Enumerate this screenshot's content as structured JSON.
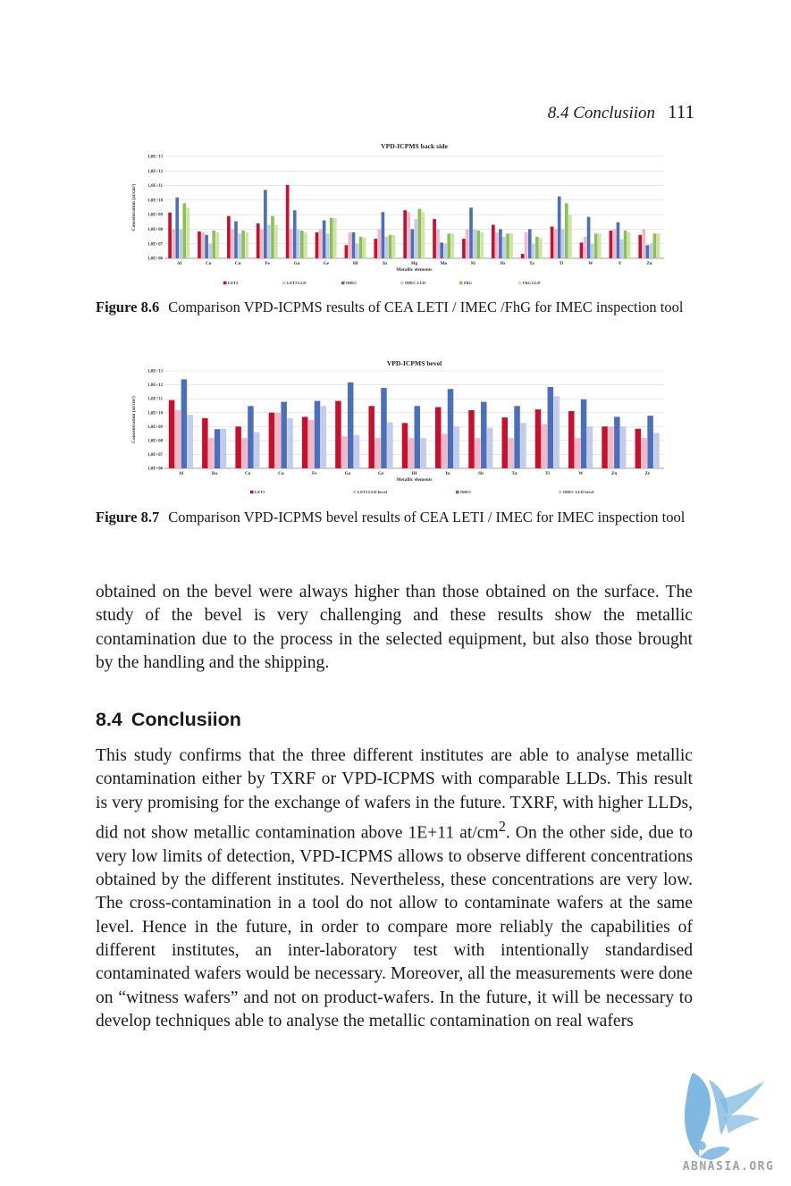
{
  "header": {
    "running_title": "8.4  Conclusiion",
    "page_number": "111"
  },
  "figures": [
    {
      "caption_label": "Figure 8.6",
      "caption_text": "Comparison VPD-ICPMS results of CEA LETI / IMEC /FhG for IMEC inspection tool"
    },
    {
      "caption_label": "Figure 8.7",
      "caption_text": "Comparison VPD-ICPMS bevel results of CEA LETI / IMEC for IMEC inspection tool"
    }
  ],
  "chart_data": [
    {
      "type": "bar",
      "title": "VPD-ICPMS back side",
      "xlabel": "Metallic elements",
      "ylabel": "Concentration (at/cm²)",
      "yscale": "log",
      "ylim": [
        1000000.0,
        10000000000000.0
      ],
      "yticks": [
        "1,0E+06",
        "1,0E+07",
        "1,0E+08",
        "1,0E+09",
        "1,0E+10",
        "1,0E+11",
        "1,0E+12",
        "1,0E+13"
      ],
      "categories": [
        "Al",
        "Co",
        "Cu",
        "Fe",
        "Ga",
        "Ge",
        "Hf",
        "In",
        "Mg",
        "Mo",
        "Ni",
        "Sb",
        "Ta",
        "Ti",
        "W",
        "Y",
        "Zn"
      ],
      "legend_position": "bottom",
      "grid": true,
      "series": [
        {
          "name": "LETI",
          "color": "#c8102e",
          "values": [
            1400000000.0,
            70000000.0,
            800000000.0,
            250000000.0,
            110000000000.0,
            60000000.0,
            8000000.0,
            22000000.0,
            2000000000.0,
            500000000.0,
            22000000.0,
            200000000.0,
            2000000.0,
            150000000.0,
            12000000.0,
            80000000.0,
            40000000.0
          ]
        },
        {
          "name": "LETI LLD",
          "color": "#f2b8c6",
          "values": [
            100000000.0,
            60000000.0,
            100000000.0,
            100000000.0,
            100000000.0,
            100000000.0,
            60000000.0,
            100000000.0,
            1500000000.0,
            100000000.0,
            100000000.0,
            60000000.0,
            60000000.0,
            100000000.0,
            30000000.0,
            100000000.0,
            100000000.0
          ]
        },
        {
          "name": "IMEC",
          "color": "#4a6fbd",
          "values": [
            15000000000.0,
            40000000.0,
            350000000.0,
            50000000000.0,
            2000000000.0,
            400000000.0,
            60000000.0,
            1500000000.0,
            100000000.0,
            12000000.0,
            3000000000.0,
            100000000.0,
            100000000.0,
            18000000000.0,
            700000000.0,
            300000000.0,
            8000000.0
          ]
        },
        {
          "name": "IMEC LLD",
          "color": "#bfcbe8",
          "values": [
            100000000.0,
            10000000.0,
            50000000.0,
            200000000.0,
            100000000.0,
            50000000.0,
            10000000.0,
            30000000.0,
            500000000.0,
            10000000.0,
            100000000.0,
            30000000.0,
            10000000.0,
            100000000.0,
            10000000.0,
            20000000.0,
            10000000.0
          ]
        },
        {
          "name": "FhG",
          "color": "#8dbf55",
          "values": [
            6000000000.0,
            80000000.0,
            80000000.0,
            800000000.0,
            80000000.0,
            600000000.0,
            30000000.0,
            40000000.0,
            2500000000.0,
            50000000.0,
            80000000.0,
            50000000.0,
            30000000.0,
            6000000000.0,
            50000000.0,
            80000000.0,
            50000000.0
          ]
        },
        {
          "name": "FhG LLD",
          "color": "#cde3a8",
          "values": [
            3000000000.0,
            60000000.0,
            60000000.0,
            200000000.0,
            60000000.0,
            600000000.0,
            25000000.0,
            40000000.0,
            1500000000.0,
            50000000.0,
            60000000.0,
            50000000.0,
            25000000.0,
            1000000000.0,
            50000000.0,
            60000000.0,
            50000000.0
          ]
        }
      ]
    },
    {
      "type": "bar",
      "title": "VPD-ICPMS bevel",
      "xlabel": "Metallic elements",
      "ylabel": "Concentration (at/cm²)",
      "yscale": "log",
      "ylim": [
        1000000.0,
        10000000000000.0
      ],
      "yticks": [
        "1,0E+06",
        "1,0E+07",
        "1,0E+08",
        "1,0E+09",
        "1,0E+10",
        "1,0E+11",
        "1,0E+12",
        "1,0E+13"
      ],
      "categories": [
        "Al",
        "Ba",
        "Co",
        "Cu",
        "Fe",
        "Ga",
        "Ge",
        "Hf",
        "In",
        "Sb",
        "Ta",
        "Ti",
        "W",
        "Zn",
        "Zr"
      ],
      "legend_position": "bottom",
      "grid": true,
      "series": [
        {
          "name": "LETI",
          "color": "#c8102e",
          "values": [
            80000000000.0,
            4000000000.0,
            1000000000.0,
            10000000000.0,
            5000000000.0,
            70000000000.0,
            30000000000.0,
            1800000000.0,
            25000000000.0,
            15000000000.0,
            4500000000.0,
            17000000000.0,
            13000000000.0,
            1000000000.0,
            700000000.0
          ]
        },
        {
          "name": "LETI LLD bevel",
          "color": "#f2b8c6",
          "values": [
            15000000000.0,
            150000000.0,
            150000000.0,
            10000000000.0,
            3000000000.0,
            200000000.0,
            150000000.0,
            150000000.0,
            300000000.0,
            150000000.0,
            150000000.0,
            1500000000.0,
            150000000.0,
            1000000000.0,
            150000000.0
          ]
        },
        {
          "name": "IMEC",
          "color": "#4a6fbd",
          "values": [
            2500000000000.0,
            650000000.0,
            30000000000.0,
            60000000000.0,
            70000000000.0,
            1500000000000.0,
            600000000000.0,
            30000000000.0,
            500000000000.0,
            60000000000.0,
            30000000000.0,
            700000000000.0,
            90000000000.0,
            5000000000.0,
            6000000000.0
          ]
        },
        {
          "name": "IMEC LLD bevel",
          "color": "#c3cde9",
          "values": [
            7000000000.0,
            700000000.0,
            400000000.0,
            4000000000.0,
            30000000000.0,
            250000000.0,
            2000000000.0,
            150000000.0,
            1000000000.0,
            800000000.0,
            1800000000.0,
            150000000000.0,
            1000000000.0,
            1000000000.0,
            350000000.0
          ]
        }
      ]
    }
  ],
  "paragraphs": {
    "continuation": "obtained on the bevel were always higher than those obtained on the surface. The study of the bevel is very challenging and these results show the metallic contamination due to the process in the selected equipment, but also those brought by the handling and the shipping.",
    "section_number": "8.4",
    "section_title": "Conclusiion",
    "conclusion_part1": "This study confirms that the three different institutes are able to analyse metallic contamination either by TXRF or VPD-ICPMS with comparable LLDs. This result is very promising for the exchange of wafers in the future. TXRF, with higher LLDs, did not show metallic contamination above 1E+11 at/cm",
    "conclusion_sup": "2",
    "conclusion_part2": ". On the other side, due to very low limits of detection, VPD-ICPMS allows to observe different concentrations obtained by the different institutes. Nevertheless, these concentrations are very low. The cross-contamination in a tool do not allow to contaminate wafers at the same level. Hence in the future, in order to compare more reliably the capabilities of different institutes, an inter-laboratory test with intentionally standardised contaminated wafers would be necessary. Moreover, all the measurements were done on “witness wafers” and not on product-wafers. In the future, it will be necessary to develop techniques able to analyse the metallic contamination on real wafers"
  },
  "watermark": {
    "text": "ABNASIA.ORG",
    "icon": "griffin-logo-icon"
  }
}
